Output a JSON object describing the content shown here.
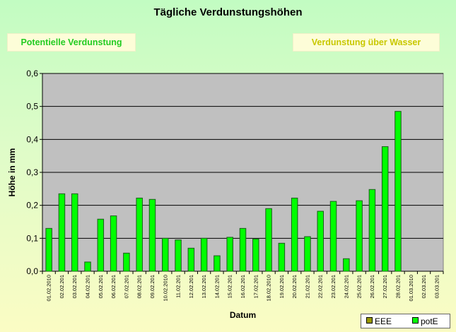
{
  "page": {
    "title": "Tägliche Verdunstungshöhen",
    "buttons": {
      "potential": "Potentielle Verdunstung",
      "water": "Verdunstung über Wasser"
    }
  },
  "colors": {
    "bar_fill": "#00ff00",
    "bar_stroke": "#1a5c1a",
    "plot_bg": "#c0c0c0",
    "potential_text": "#22cc22",
    "water_text": "#c8c800"
  },
  "chart_data": {
    "type": "bar",
    "title": "Tägliche Verdunstungshöhen",
    "xlabel": "Datum",
    "ylabel": "Höhe in mm",
    "ylim": [
      0,
      0.6
    ],
    "yticks": [
      "0,0",
      "0,1",
      "0,2",
      "0,3",
      "0,4",
      "0,5",
      "0,6"
    ],
    "grid": true,
    "legend_position": "bottom-right",
    "categories": [
      "01.02.2010",
      "02.02.201",
      "03.02.201",
      "04.02.201",
      "05.02.201",
      "06.02.201",
      "07.02.201",
      "08.02.201",
      "09.02.201",
      "10.02.2010",
      "11.02.201",
      "12.02.201",
      "13.02.201",
      "14.02.201",
      "15.02.201",
      "16.02.201",
      "17.02.201",
      "18.02.2010",
      "19.02.201",
      "20.02.201",
      "21.02.201",
      "22.02.201",
      "23.02.201",
      "24.02.201",
      "25.02.201",
      "26.02.201",
      "27.02.201",
      "28.02.201",
      "01.03.2010",
      "02.03.201",
      "03.03.201"
    ],
    "series": [
      {
        "name": "EEE",
        "color": "#999900",
        "values": [
          null,
          null,
          null,
          null,
          null,
          null,
          null,
          null,
          null,
          null,
          null,
          null,
          null,
          null,
          null,
          null,
          null,
          null,
          null,
          null,
          null,
          null,
          null,
          null,
          null,
          null,
          null,
          null,
          null,
          null,
          null
        ]
      },
      {
        "name": "potE",
        "color": "#00ff00",
        "values": [
          0.13,
          0.235,
          0.235,
          0.028,
          0.158,
          0.168,
          0.055,
          0.222,
          0.218,
          0.1,
          0.095,
          0.07,
          0.1,
          0.047,
          0.103,
          0.13,
          0.098,
          0.19,
          0.085,
          0.222,
          0.105,
          0.182,
          0.212,
          0.038,
          0.214,
          0.248,
          0.378,
          0.485,
          null,
          null,
          null
        ]
      }
    ]
  }
}
